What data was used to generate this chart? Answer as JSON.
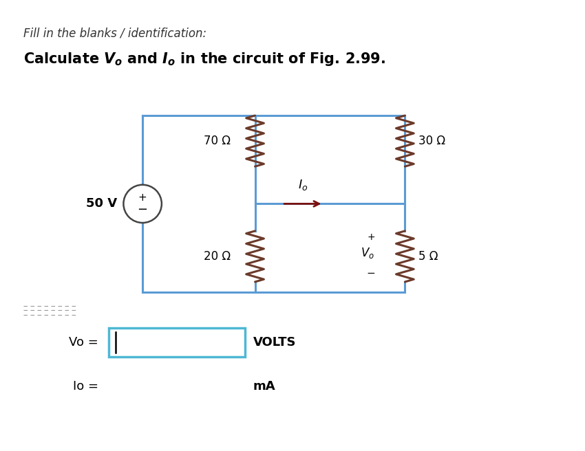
{
  "title_italic": "Fill in the blanks / identification:",
  "subtitle": "Calculate $V_o$ and $I_o$ in the circuit of Fig. 2.99.",
  "bg_color": "#ffffff",
  "circuit_line_color": "#5b9bd5",
  "resistor_color": "#6B3A2A",
  "source_color": "#444444",
  "arrow_color": "#7B1010",
  "resistors": {
    "R1": "70 Ω",
    "R2": "20 Ω",
    "R3": "30 Ω",
    "R4": "5 Ω"
  },
  "source_label": "50 V",
  "answer_box_color": "#4db8d4",
  "vo_units": "VOLTS",
  "io_units": "mA"
}
